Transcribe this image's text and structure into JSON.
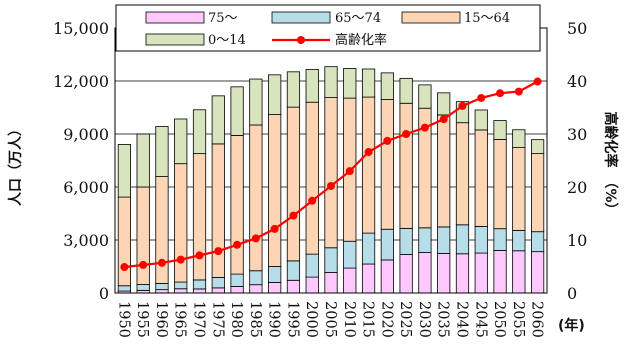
{
  "chart_data": {
    "type": "bar",
    "subtype": "stacked bar with line on secondary axis",
    "categories": [
      "1950",
      "1955",
      "1960",
      "1965",
      "1970",
      "1975",
      "1980",
      "1985",
      "1990",
      "1995",
      "2000",
      "2005",
      "2010",
      "2015",
      "2020",
      "2025",
      "2030",
      "2035",
      "2040",
      "2045",
      "2050",
      "2055",
      "2060"
    ],
    "series": [
      {
        "name": "75～",
        "color": "#ffc8ff",
        "axis": "left",
        "values": [
          110,
          150,
          190,
          240,
          230,
          290,
          370,
          470,
          600,
          720,
          900,
          1160,
          1410,
          1640,
          1870,
          2180,
          2290,
          2240,
          2220,
          2260,
          2410,
          2390,
          2340
        ]
      },
      {
        "name": "65～74",
        "color": "#b7dee8",
        "axis": "left",
        "values": [
          300,
          330,
          350,
          380,
          510,
          590,
          700,
          790,
          900,
          1100,
          1300,
          1400,
          1520,
          1750,
          1740,
          1480,
          1400,
          1500,
          1640,
          1510,
          1230,
          1150,
          1130
        ]
      },
      {
        "name": "15～64",
        "color": "#fcd5b5",
        "axis": "left",
        "values": [
          5020,
          5520,
          6050,
          6700,
          7150,
          7560,
          7850,
          8250,
          8600,
          8700,
          8600,
          8500,
          8100,
          7700,
          7340,
          7080,
          6770,
          6340,
          5780,
          5460,
          5050,
          4690,
          4420
        ]
      },
      {
        "name": "0～14",
        "color": "#d7e4bd",
        "axis": "left",
        "values": [
          2980,
          3000,
          2830,
          2530,
          2480,
          2720,
          2750,
          2600,
          2250,
          2000,
          1850,
          1750,
          1680,
          1590,
          1510,
          1410,
          1320,
          1250,
          1190,
          1130,
          1070,
          1010,
          790
        ]
      },
      {
        "name": "高齢化率",
        "color": "#ff0000",
        "axis": "right",
        "type": "line",
        "values": [
          4.9,
          5.3,
          5.7,
          6.3,
          7.1,
          7.9,
          9.1,
          10.3,
          12.1,
          14.6,
          17.4,
          20.2,
          23.0,
          26.6,
          28.7,
          30.0,
          31.2,
          32.8,
          35.3,
          36.8,
          37.7,
          38.0,
          39.9
        ]
      }
    ],
    "ylabel": "人口（万人）",
    "y2label": "高齢化率　（%）",
    "xunit": "(年)",
    "ylim": [
      0,
      15000
    ],
    "y2lim": [
      0,
      50
    ],
    "yticks": [
      "0",
      "3,000",
      "6,000",
      "9,000",
      "12,000",
      "15,000"
    ],
    "y2ticks": [
      "0",
      "10",
      "20",
      "30",
      "40",
      "50"
    ],
    "grid": "horizontal",
    "legend": "top",
    "legend_order": [
      "75～",
      "65～74",
      "15～64",
      "0～14",
      "高齢化率"
    ]
  }
}
